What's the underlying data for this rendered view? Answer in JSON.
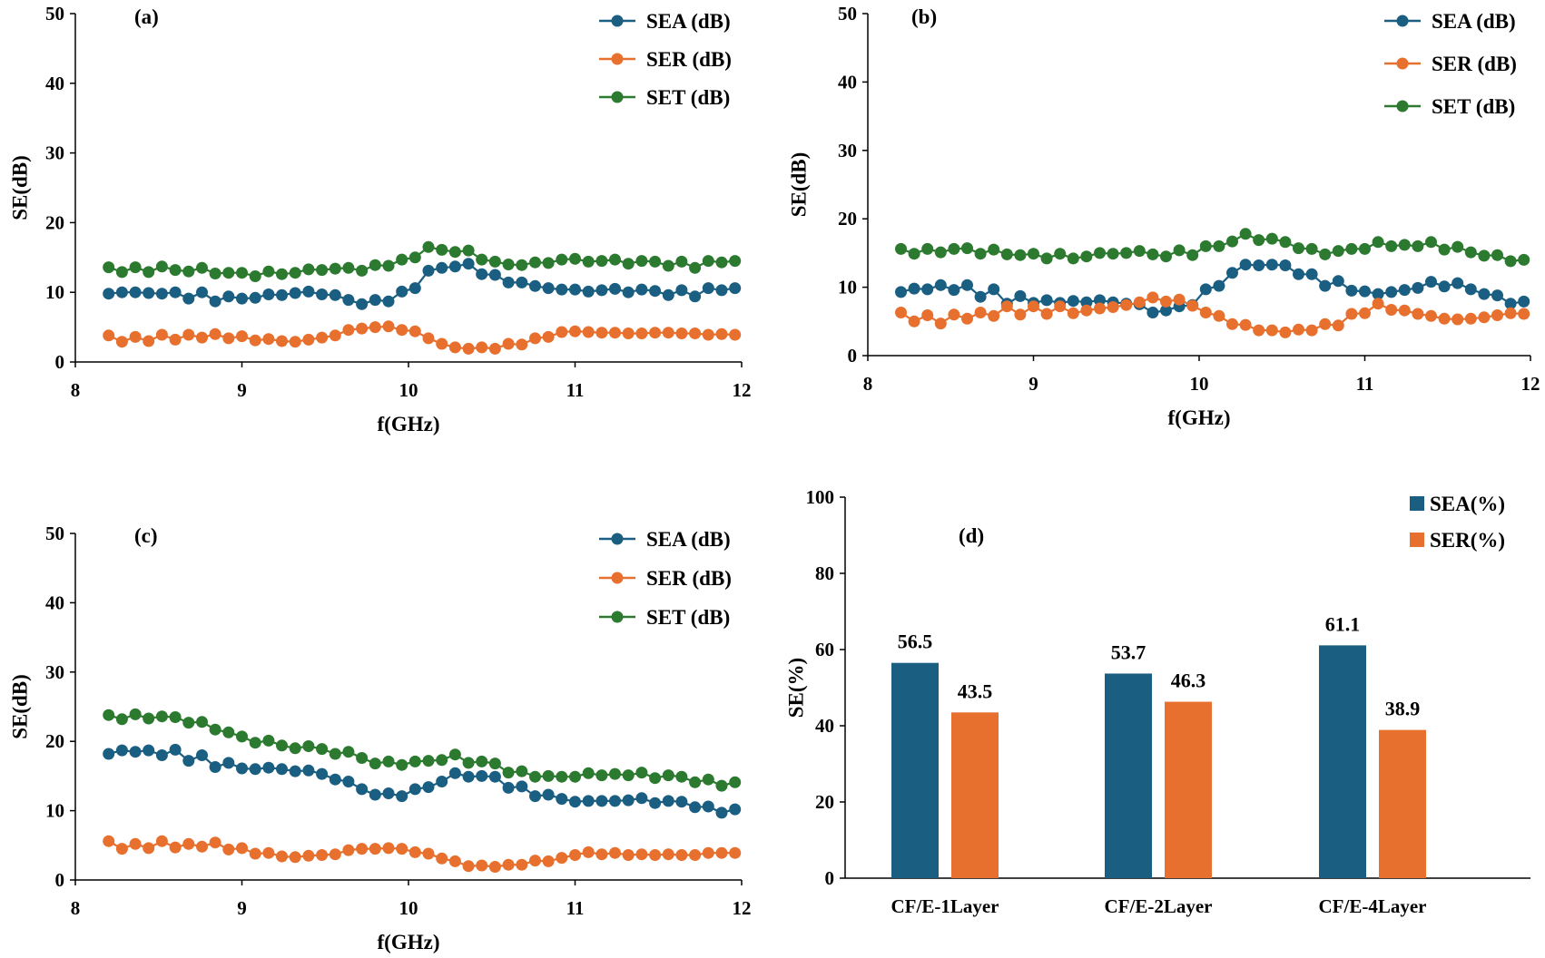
{
  "colors": {
    "SEA": "#1a5e82",
    "SER": "#e8702e",
    "SET": "#2c7a2f"
  },
  "chart_data": [
    {
      "type": "line",
      "panel": "(a)",
      "xlabel": "f(GHz)",
      "ylabel": "SE(dB)",
      "xlim": [
        8,
        12
      ],
      "ylim": [
        0,
        50
      ],
      "xticks": [
        8,
        9,
        10,
        11,
        12
      ],
      "yticks": [
        0,
        10,
        20,
        30,
        40,
        50
      ],
      "legend": "top-right",
      "x": [
        8.2,
        8.28,
        8.36,
        8.44,
        8.52,
        8.6,
        8.68,
        8.76,
        8.84,
        8.92,
        9.0,
        9.08,
        9.16,
        9.24,
        9.32,
        9.4,
        9.48,
        9.56,
        9.64,
        9.72,
        9.8,
        9.88,
        9.96,
        10.04,
        10.12,
        10.2,
        10.28,
        10.36,
        10.44,
        10.52,
        10.6,
        10.68,
        10.76,
        10.84,
        10.92,
        11.0,
        11.08,
        11.16,
        11.24,
        11.32,
        11.4,
        11.48,
        11.56,
        11.64,
        11.72,
        11.8,
        11.88,
        11.96
      ],
      "series": [
        {
          "name": "SEA (dB)",
          "key": "SEA",
          "values": [
            9.8,
            10.0,
            10.0,
            9.9,
            9.8,
            10.0,
            9.1,
            10.0,
            8.7,
            9.4,
            9.1,
            9.2,
            9.7,
            9.6,
            9.9,
            10.1,
            9.7,
            9.6,
            8.9,
            8.3,
            8.9,
            8.7,
            10.1,
            10.6,
            13.1,
            13.5,
            13.7,
            14.1,
            12.6,
            12.5,
            11.4,
            11.4,
            10.9,
            10.6,
            10.4,
            10.4,
            10.1,
            10.3,
            10.5,
            10.0,
            10.4,
            10.2,
            9.6,
            10.3,
            9.4,
            10.6,
            10.3,
            10.6
          ]
        },
        {
          "name": "SER (dB)",
          "key": "SER",
          "values": [
            3.8,
            2.9,
            3.6,
            3.0,
            3.9,
            3.2,
            3.9,
            3.5,
            4.0,
            3.4,
            3.7,
            3.1,
            3.3,
            3.0,
            2.9,
            3.2,
            3.5,
            3.8,
            4.6,
            4.8,
            5.0,
            5.1,
            4.6,
            4.4,
            3.4,
            2.6,
            2.1,
            1.9,
            2.1,
            1.9,
            2.6,
            2.5,
            3.4,
            3.6,
            4.3,
            4.4,
            4.3,
            4.2,
            4.2,
            4.1,
            4.1,
            4.2,
            4.2,
            4.1,
            4.1,
            3.9,
            4.0,
            3.9
          ]
        },
        {
          "name": "SET (dB)",
          "key": "SET",
          "values": [
            13.6,
            12.9,
            13.6,
            12.9,
            13.7,
            13.2,
            13.0,
            13.5,
            12.7,
            12.8,
            12.8,
            12.3,
            13.0,
            12.6,
            12.8,
            13.3,
            13.2,
            13.4,
            13.5,
            13.1,
            13.9,
            13.8,
            14.7,
            15.0,
            16.5,
            16.1,
            15.8,
            16.0,
            14.7,
            14.4,
            14.0,
            13.9,
            14.3,
            14.2,
            14.7,
            14.8,
            14.4,
            14.5,
            14.7,
            14.1,
            14.5,
            14.4,
            13.8,
            14.4,
            13.5,
            14.5,
            14.3,
            14.5
          ]
        }
      ]
    },
    {
      "type": "line",
      "panel": "(b)",
      "xlabel": "f(GHz)",
      "ylabel": "SE(dB)",
      "xlim": [
        8,
        12
      ],
      "ylim": [
        0,
        50
      ],
      "xticks": [
        8,
        9,
        10,
        11,
        12
      ],
      "yticks": [
        0,
        10,
        20,
        30,
        40,
        50
      ],
      "legend": "top-right",
      "x": [
        8.2,
        8.28,
        8.36,
        8.44,
        8.52,
        8.6,
        8.68,
        8.76,
        8.84,
        8.92,
        9.0,
        9.08,
        9.16,
        9.24,
        9.32,
        9.4,
        9.48,
        9.56,
        9.64,
        9.72,
        9.8,
        9.88,
        9.96,
        10.04,
        10.12,
        10.2,
        10.28,
        10.36,
        10.44,
        10.52,
        10.6,
        10.68,
        10.76,
        10.84,
        10.92,
        11.0,
        11.08,
        11.16,
        11.24,
        11.32,
        11.4,
        11.48,
        11.56,
        11.64,
        11.72,
        11.8,
        11.88,
        11.96
      ],
      "series": [
        {
          "name": "SEA (dB)",
          "key": "SEA",
          "values": [
            9.3,
            9.8,
            9.7,
            10.3,
            9.6,
            10.3,
            8.6,
            9.7,
            7.6,
            8.7,
            7.7,
            8.1,
            7.7,
            8.0,
            7.8,
            8.1,
            7.8,
            7.6,
            7.5,
            6.3,
            6.6,
            7.2,
            7.4,
            9.7,
            10.2,
            12.1,
            13.3,
            13.2,
            13.3,
            13.2,
            11.9,
            11.9,
            10.2,
            10.9,
            9.5,
            9.4,
            9.0,
            9.3,
            9.6,
            9.9,
            10.8,
            10.1,
            10.6,
            9.7,
            9.0,
            8.8,
            7.6,
            7.9
          ]
        },
        {
          "name": "SER (dB)",
          "key": "SER",
          "values": [
            6.3,
            5.0,
            5.9,
            4.7,
            6.0,
            5.4,
            6.3,
            5.8,
            7.2,
            6.0,
            7.2,
            6.1,
            7.2,
            6.2,
            6.6,
            6.9,
            7.1,
            7.4,
            7.8,
            8.5,
            7.9,
            8.2,
            7.3,
            6.3,
            5.8,
            4.6,
            4.5,
            3.7,
            3.7,
            3.4,
            3.8,
            3.7,
            4.6,
            4.4,
            6.1,
            6.2,
            7.6,
            6.7,
            6.6,
            6.1,
            5.8,
            5.4,
            5.3,
            5.4,
            5.6,
            5.9,
            6.2,
            6.1
          ]
        },
        {
          "name": "SET (dB)",
          "key": "SET",
          "values": [
            15.6,
            14.9,
            15.6,
            15.1,
            15.6,
            15.7,
            14.9,
            15.5,
            14.8,
            14.7,
            14.9,
            14.2,
            14.9,
            14.2,
            14.5,
            15.0,
            14.9,
            15.0,
            15.3,
            14.8,
            14.5,
            15.4,
            14.7,
            16.0,
            16.0,
            16.7,
            17.8,
            16.9,
            17.1,
            16.6,
            15.7,
            15.6,
            14.8,
            15.3,
            15.6,
            15.6,
            16.6,
            16.0,
            16.2,
            16.0,
            16.6,
            15.5,
            15.9,
            15.1,
            14.6,
            14.7,
            13.8,
            14.0
          ]
        }
      ]
    },
    {
      "type": "line",
      "panel": "(c)",
      "xlabel": "f(GHz)",
      "ylabel": "SE(dB)",
      "xlim": [
        8,
        12
      ],
      "ylim": [
        0,
        50
      ],
      "xticks": [
        8,
        9,
        10,
        11,
        12
      ],
      "yticks": [
        0,
        10,
        20,
        30,
        40,
        50
      ],
      "legend": "top-right",
      "x": [
        8.2,
        8.28,
        8.36,
        8.44,
        8.52,
        8.6,
        8.68,
        8.76,
        8.84,
        8.92,
        9.0,
        9.08,
        9.16,
        9.24,
        9.32,
        9.4,
        9.48,
        9.56,
        9.64,
        9.72,
        9.8,
        9.88,
        9.96,
        10.04,
        10.12,
        10.2,
        10.28,
        10.36,
        10.44,
        10.52,
        10.6,
        10.68,
        10.76,
        10.84,
        10.92,
        11.0,
        11.08,
        11.16,
        11.24,
        11.32,
        11.4,
        11.48,
        11.56,
        11.64,
        11.72,
        11.8,
        11.88,
        11.96
      ],
      "series": [
        {
          "name": "SEA (dB)",
          "key": "SEA",
          "values": [
            18.2,
            18.7,
            18.5,
            18.7,
            18.0,
            18.8,
            17.2,
            18.0,
            16.3,
            16.9,
            16.1,
            16.0,
            16.2,
            16.0,
            15.7,
            15.8,
            15.3,
            14.5,
            14.2,
            13.1,
            12.3,
            12.5,
            12.1,
            13.1,
            13.4,
            14.2,
            15.4,
            14.9,
            15.0,
            14.9,
            13.3,
            13.5,
            12.1,
            12.3,
            11.7,
            11.3,
            11.4,
            11.4,
            11.4,
            11.5,
            11.8,
            11.1,
            11.4,
            11.3,
            10.5,
            10.6,
            9.7,
            10.2
          ]
        },
        {
          "name": "SER (dB)",
          "key": "SER",
          "values": [
            5.6,
            4.5,
            5.2,
            4.6,
            5.6,
            4.7,
            5.2,
            4.8,
            5.4,
            4.4,
            4.6,
            3.8,
            3.9,
            3.4,
            3.3,
            3.5,
            3.6,
            3.7,
            4.3,
            4.5,
            4.5,
            4.6,
            4.5,
            4.0,
            3.8,
            3.1,
            2.7,
            2.0,
            2.1,
            1.9,
            2.2,
            2.2,
            2.8,
            2.7,
            3.2,
            3.6,
            4.0,
            3.7,
            3.9,
            3.6,
            3.7,
            3.6,
            3.7,
            3.6,
            3.6,
            3.9,
            3.9,
            3.9
          ]
        },
        {
          "name": "SET (dB)",
          "key": "SET",
          "values": [
            23.8,
            23.2,
            23.9,
            23.3,
            23.6,
            23.5,
            22.7,
            22.8,
            21.7,
            21.3,
            20.7,
            19.8,
            20.1,
            19.4,
            19.0,
            19.3,
            18.9,
            18.2,
            18.5,
            17.6,
            16.8,
            17.1,
            16.6,
            17.1,
            17.2,
            17.3,
            18.1,
            16.9,
            17.1,
            16.8,
            15.5,
            15.7,
            14.9,
            15.0,
            14.9,
            14.9,
            15.4,
            15.1,
            15.3,
            15.1,
            15.5,
            14.7,
            15.1,
            14.9,
            14.1,
            14.5,
            13.6,
            14.1
          ]
        }
      ]
    },
    {
      "type": "bar",
      "panel": "(d)",
      "xlabel": "",
      "ylabel": "SE(%)",
      "ylim": [
        0,
        100
      ],
      "yticks": [
        0,
        20,
        40,
        60,
        80,
        100
      ],
      "legend": "top-right",
      "categories": [
        "CF/E-1Layer",
        "CF/E-2Layer",
        "CF/E-4Layer"
      ],
      "series": [
        {
          "name": "SEA(%)",
          "key": "SEA",
          "values": [
            56.5,
            53.7,
            61.1
          ],
          "labels": [
            "56.5",
            "53.7",
            "61.1"
          ]
        },
        {
          "name": "SER(%)",
          "key": "SER",
          "values": [
            43.5,
            46.3,
            38.9
          ],
          "labels": [
            "43.5",
            "46.3",
            "38.9"
          ]
        }
      ]
    }
  ]
}
